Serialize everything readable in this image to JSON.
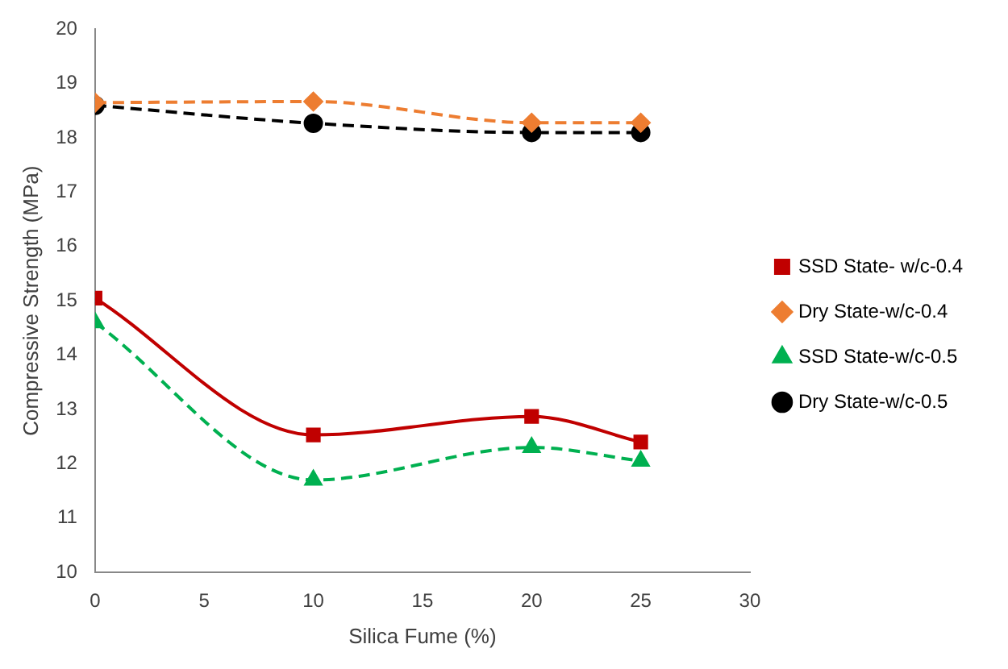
{
  "chart_data": {
    "type": "line",
    "xlabel": "Silica Fume (%)",
    "ylabel": "Compressive Strength (MPa)",
    "x": [
      0,
      10,
      20,
      25
    ],
    "xlim": [
      0,
      30
    ],
    "xticks": [
      0,
      5,
      10,
      15,
      20,
      25,
      30
    ],
    "ylim": [
      10,
      20
    ],
    "yticks": [
      10,
      11,
      12,
      13,
      14,
      15,
      16,
      17,
      18,
      19,
      20
    ],
    "grid": false,
    "legend": "right",
    "series": [
      {
        "name": "SSD State- w/c-0.4",
        "color": "#c00000",
        "values": [
          15.05,
          12.53,
          12.87,
          12.4
        ],
        "marker": "square",
        "line_style": "solid"
      },
      {
        "name": "Dry State-w/c-0.4",
        "color": "#ed7d31",
        "values": [
          18.65,
          18.67,
          18.28,
          18.28
        ],
        "marker": "diamond",
        "line_style": "dashed"
      },
      {
        "name": "SSD State-w/c-0.5",
        "color": "#00b050",
        "values": [
          14.6,
          11.7,
          12.3,
          12.05
        ],
        "marker": "triangle",
        "line_style": "dashed"
      },
      {
        "name": "Dry State-w/c-0.5",
        "color": "#000000",
        "values": [
          18.6,
          18.27,
          18.1,
          18.1
        ],
        "marker": "circle",
        "line_style": "dashed"
      }
    ]
  }
}
